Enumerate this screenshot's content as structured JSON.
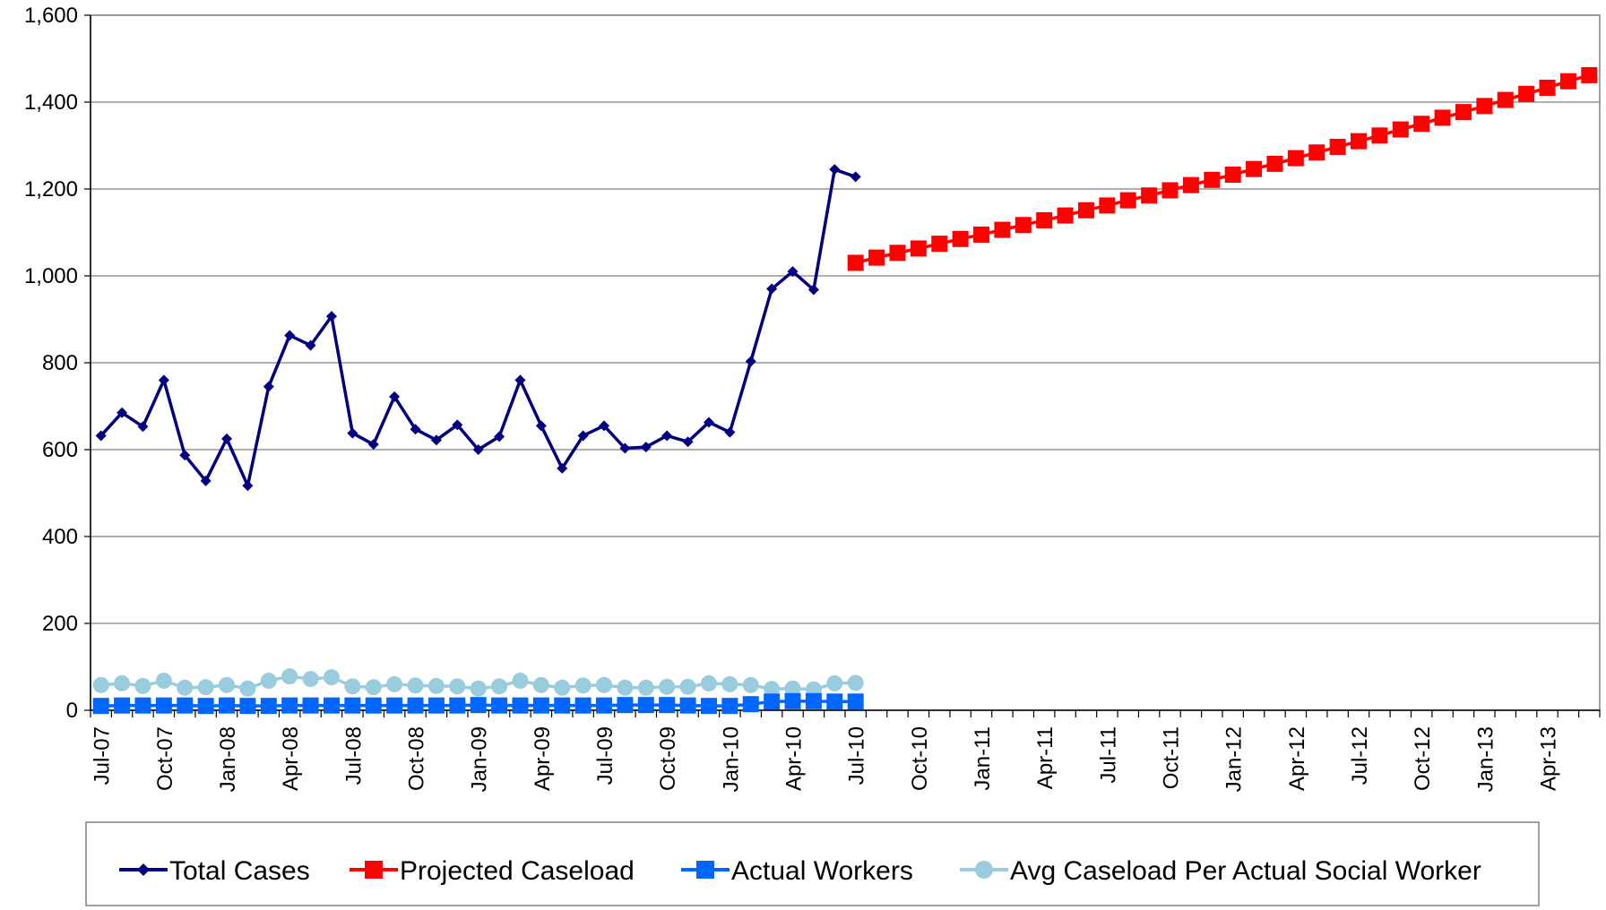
{
  "chart_data": {
    "type": "line",
    "title": "",
    "xlabel": "",
    "ylabel": "",
    "ylim": [
      0,
      1600
    ],
    "yticks": [
      0,
      200,
      400,
      600,
      800,
      1000,
      1200,
      1400,
      1600
    ],
    "ytick_labels": [
      "0",
      "200",
      "400",
      "600",
      "800",
      "1,000",
      "1,200",
      "1,400",
      "1,600"
    ],
    "x_start": "Jul-07",
    "xtick_labels": [
      "Jul-07",
      "Oct-07",
      "Jan-08",
      "Apr-08",
      "Jul-08",
      "Oct-08",
      "Jan-09",
      "Apr-09",
      "Jul-09",
      "Oct-09",
      "Jan-10",
      "Apr-10",
      "Jul-10",
      "Oct-10",
      "Jan-11",
      "Apr-11",
      "Jul-11",
      "Oct-11",
      "Jan-12",
      "Apr-12",
      "Jul-12",
      "Oct-12",
      "Jan-13",
      "Apr-13"
    ],
    "grid": true,
    "legend_position": "bottom",
    "series": [
      {
        "name": "Total Cases",
        "color": "#000080",
        "marker": "diamond",
        "start_index": 0,
        "values": [
          632,
          685,
          653,
          760,
          587,
          528,
          625,
          517,
          745,
          863,
          840,
          907,
          638,
          612,
          722,
          647,
          622,
          657,
          600,
          630,
          760,
          655,
          557,
          632,
          655,
          603,
          606,
          632,
          618,
          663,
          640,
          803,
          970,
          1010,
          968,
          1245,
          1228
        ]
      },
      {
        "name": "Projected Caseload",
        "color": "#ff0000",
        "marker": "square",
        "start_index": 36,
        "values": [
          1030,
          1042,
          1053,
          1063,
          1074,
          1085,
          1095,
          1106,
          1117,
          1128,
          1139,
          1151,
          1162,
          1174,
          1185,
          1197,
          1209,
          1221,
          1233,
          1246,
          1258,
          1271,
          1284,
          1297,
          1310,
          1323,
          1337,
          1350,
          1364,
          1377,
          1391,
          1405,
          1419,
          1433,
          1448,
          1462
        ]
      },
      {
        "name": "Actual Workers",
        "color": "#0066ff",
        "marker": "square",
        "start_index": 0,
        "values": [
          10,
          11,
          11,
          11,
          11,
          10,
          11,
          10,
          10,
          11,
          11,
          11,
          11,
          11,
          11,
          11,
          11,
          11,
          12,
          11,
          11,
          11,
          11,
          11,
          11,
          12,
          12,
          12,
          11,
          10,
          10,
          14,
          20,
          21,
          21,
          20,
          20
        ]
      },
      {
        "name": "Avg Caseload Per Actual Social Worker",
        "color": "#99ccdd",
        "marker": "circle",
        "start_index": 0,
        "values": [
          58,
          62,
          56,
          68,
          52,
          53,
          58,
          50,
          68,
          78,
          72,
          76,
          55,
          53,
          60,
          57,
          56,
          55,
          50,
          55,
          68,
          58,
          52,
          57,
          58,
          52,
          52,
          54,
          54,
          62,
          60,
          58,
          49,
          50,
          48,
          62,
          63
        ]
      }
    ]
  }
}
